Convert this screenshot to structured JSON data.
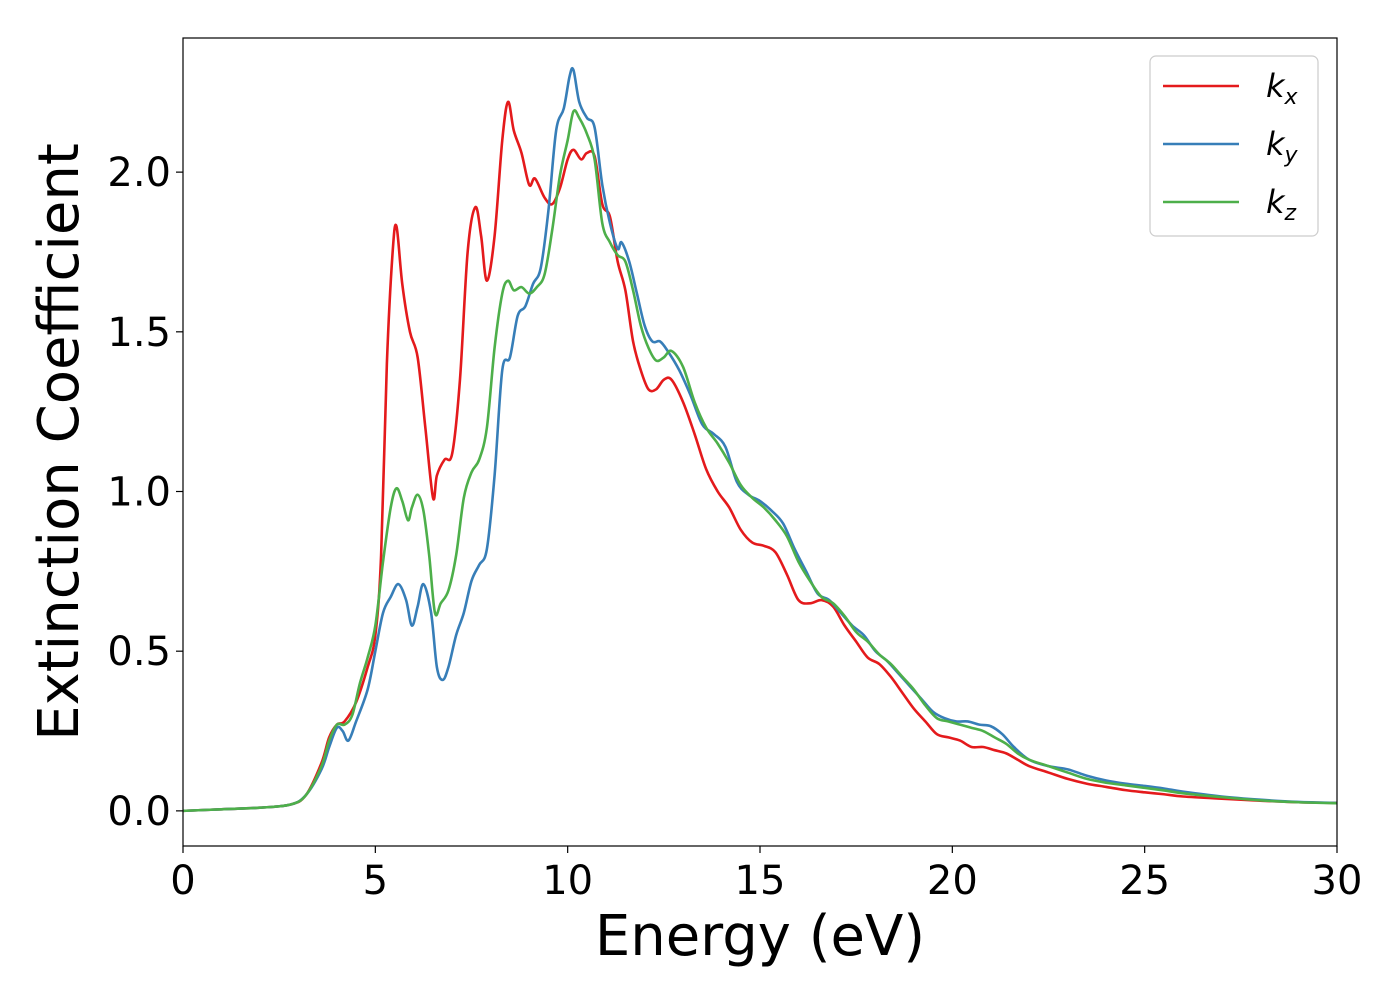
{
  "chart_data": {
    "type": "line",
    "title": "",
    "xlabel": "Energy (eV)",
    "ylabel": "Extinction Coefficient",
    "xlim": [
      0,
      30
    ],
    "ylim": [
      -0.11,
      2.42
    ],
    "xticks": [
      0,
      5,
      10,
      15,
      20,
      25,
      30
    ],
    "xtick_labels": [
      "0",
      "5",
      "10",
      "15",
      "20",
      "25",
      "30"
    ],
    "yticks": [
      0.0,
      0.5,
      1.0,
      1.5,
      2.0
    ],
    "ytick_labels": [
      "0.0",
      "0.5",
      "1.0",
      "1.5",
      "2.0"
    ],
    "grid": false,
    "legend_position": "top-right",
    "series": [
      {
        "name": "k",
        "subscript": "x",
        "color": "#e41a1c",
        "points": [
          [
            0,
            0
          ],
          [
            1,
            0.005
          ],
          [
            2,
            0.01
          ],
          [
            2.8,
            0.02
          ],
          [
            3.2,
            0.05
          ],
          [
            3.6,
            0.15
          ],
          [
            3.8,
            0.23
          ],
          [
            4.0,
            0.27
          ],
          [
            4.2,
            0.28
          ],
          [
            4.5,
            0.34
          ],
          [
            4.8,
            0.45
          ],
          [
            5.0,
            0.55
          ],
          [
            5.15,
            0.8
          ],
          [
            5.3,
            1.4
          ],
          [
            5.45,
            1.75
          ],
          [
            5.55,
            1.83
          ],
          [
            5.7,
            1.65
          ],
          [
            5.9,
            1.5
          ],
          [
            6.1,
            1.42
          ],
          [
            6.3,
            1.2
          ],
          [
            6.5,
            0.98
          ],
          [
            6.6,
            1.05
          ],
          [
            6.8,
            1.1
          ],
          [
            7.0,
            1.12
          ],
          [
            7.2,
            1.35
          ],
          [
            7.4,
            1.75
          ],
          [
            7.6,
            1.89
          ],
          [
            7.75,
            1.8
          ],
          [
            7.9,
            1.66
          ],
          [
            8.1,
            1.8
          ],
          [
            8.3,
            2.1
          ],
          [
            8.45,
            2.22
          ],
          [
            8.6,
            2.13
          ],
          [
            8.8,
            2.06
          ],
          [
            9.0,
            1.96
          ],
          [
            9.15,
            1.98
          ],
          [
            9.4,
            1.92
          ],
          [
            9.6,
            1.9
          ],
          [
            9.8,
            1.95
          ],
          [
            10.0,
            2.04
          ],
          [
            10.15,
            2.07
          ],
          [
            10.35,
            2.04
          ],
          [
            10.5,
            2.06
          ],
          [
            10.7,
            2.05
          ],
          [
            10.9,
            1.9
          ],
          [
            11.1,
            1.86
          ],
          [
            11.3,
            1.72
          ],
          [
            11.5,
            1.63
          ],
          [
            11.7,
            1.47
          ],
          [
            11.9,
            1.38
          ],
          [
            12.1,
            1.32
          ],
          [
            12.3,
            1.32
          ],
          [
            12.5,
            1.35
          ],
          [
            12.7,
            1.35
          ],
          [
            13.0,
            1.28
          ],
          [
            13.3,
            1.18
          ],
          [
            13.6,
            1.07
          ],
          [
            13.9,
            1.0
          ],
          [
            14.2,
            0.95
          ],
          [
            14.5,
            0.88
          ],
          [
            14.8,
            0.84
          ],
          [
            15.1,
            0.83
          ],
          [
            15.4,
            0.81
          ],
          [
            15.7,
            0.74
          ],
          [
            16.0,
            0.66
          ],
          [
            16.3,
            0.65
          ],
          [
            16.6,
            0.66
          ],
          [
            16.9,
            0.64
          ],
          [
            17.2,
            0.58
          ],
          [
            17.5,
            0.53
          ],
          [
            17.8,
            0.48
          ],
          [
            18.1,
            0.46
          ],
          [
            18.4,
            0.42
          ],
          [
            18.7,
            0.37
          ],
          [
            19.0,
            0.32
          ],
          [
            19.3,
            0.28
          ],
          [
            19.6,
            0.24
          ],
          [
            19.9,
            0.23
          ],
          [
            20.2,
            0.22
          ],
          [
            20.5,
            0.2
          ],
          [
            20.8,
            0.2
          ],
          [
            21.1,
            0.19
          ],
          [
            21.4,
            0.18
          ],
          [
            21.7,
            0.16
          ],
          [
            22.0,
            0.14
          ],
          [
            22.5,
            0.12
          ],
          [
            23.0,
            0.1
          ],
          [
            23.5,
            0.085
          ],
          [
            24.0,
            0.075
          ],
          [
            24.5,
            0.065
          ],
          [
            25.0,
            0.058
          ],
          [
            25.5,
            0.052
          ],
          [
            26.0,
            0.045
          ],
          [
            27.0,
            0.038
          ],
          [
            28.0,
            0.032
          ],
          [
            29.0,
            0.027
          ],
          [
            30.0,
            0.025
          ]
        ]
      },
      {
        "name": "k",
        "subscript": "y",
        "color": "#377eb8",
        "points": [
          [
            0,
            0
          ],
          [
            1,
            0.005
          ],
          [
            2,
            0.01
          ],
          [
            2.8,
            0.02
          ],
          [
            3.2,
            0.05
          ],
          [
            3.6,
            0.13
          ],
          [
            3.8,
            0.2
          ],
          [
            4.0,
            0.26
          ],
          [
            4.15,
            0.25
          ],
          [
            4.3,
            0.22
          ],
          [
            4.5,
            0.28
          ],
          [
            4.8,
            0.38
          ],
          [
            5.0,
            0.5
          ],
          [
            5.2,
            0.62
          ],
          [
            5.4,
            0.67
          ],
          [
            5.6,
            0.71
          ],
          [
            5.8,
            0.66
          ],
          [
            5.95,
            0.58
          ],
          [
            6.1,
            0.64
          ],
          [
            6.25,
            0.71
          ],
          [
            6.45,
            0.62
          ],
          [
            6.6,
            0.45
          ],
          [
            6.75,
            0.41
          ],
          [
            6.9,
            0.45
          ],
          [
            7.1,
            0.55
          ],
          [
            7.3,
            0.62
          ],
          [
            7.5,
            0.72
          ],
          [
            7.7,
            0.77
          ],
          [
            7.9,
            0.82
          ],
          [
            8.1,
            1.05
          ],
          [
            8.3,
            1.38
          ],
          [
            8.5,
            1.42
          ],
          [
            8.7,
            1.55
          ],
          [
            8.9,
            1.58
          ],
          [
            9.1,
            1.65
          ],
          [
            9.3,
            1.7
          ],
          [
            9.5,
            1.88
          ],
          [
            9.7,
            2.13
          ],
          [
            9.9,
            2.2
          ],
          [
            10.05,
            2.3
          ],
          [
            10.15,
            2.32
          ],
          [
            10.3,
            2.22
          ],
          [
            10.5,
            2.17
          ],
          [
            10.7,
            2.14
          ],
          [
            10.9,
            1.96
          ],
          [
            11.1,
            1.84
          ],
          [
            11.3,
            1.76
          ],
          [
            11.4,
            1.78
          ],
          [
            11.6,
            1.72
          ],
          [
            11.8,
            1.62
          ],
          [
            12.0,
            1.52
          ],
          [
            12.2,
            1.47
          ],
          [
            12.4,
            1.47
          ],
          [
            12.6,
            1.44
          ],
          [
            12.9,
            1.38
          ],
          [
            13.2,
            1.3
          ],
          [
            13.5,
            1.21
          ],
          [
            13.8,
            1.18
          ],
          [
            14.1,
            1.14
          ],
          [
            14.4,
            1.03
          ],
          [
            14.7,
            0.99
          ],
          [
            15.0,
            0.97
          ],
          [
            15.3,
            0.94
          ],
          [
            15.6,
            0.9
          ],
          [
            15.9,
            0.82
          ],
          [
            16.2,
            0.75
          ],
          [
            16.5,
            0.68
          ],
          [
            16.8,
            0.66
          ],
          [
            17.1,
            0.62
          ],
          [
            17.4,
            0.58
          ],
          [
            17.7,
            0.55
          ],
          [
            18.0,
            0.5
          ],
          [
            18.3,
            0.47
          ],
          [
            18.6,
            0.43
          ],
          [
            18.9,
            0.39
          ],
          [
            19.2,
            0.35
          ],
          [
            19.5,
            0.31
          ],
          [
            19.8,
            0.29
          ],
          [
            20.1,
            0.28
          ],
          [
            20.4,
            0.28
          ],
          [
            20.7,
            0.27
          ],
          [
            21.0,
            0.265
          ],
          [
            21.3,
            0.24
          ],
          [
            21.6,
            0.2
          ],
          [
            22.0,
            0.16
          ],
          [
            22.5,
            0.14
          ],
          [
            23.0,
            0.13
          ],
          [
            23.5,
            0.11
          ],
          [
            24.0,
            0.095
          ],
          [
            24.5,
            0.085
          ],
          [
            25.0,
            0.078
          ],
          [
            25.5,
            0.07
          ],
          [
            26.0,
            0.06
          ],
          [
            27.0,
            0.045
          ],
          [
            28.0,
            0.035
          ],
          [
            29.0,
            0.028
          ],
          [
            30.0,
            0.025
          ]
        ]
      },
      {
        "name": "k",
        "subscript": "z",
        "color": "#4daf4a",
        "points": [
          [
            0,
            0
          ],
          [
            1,
            0.005
          ],
          [
            2,
            0.01
          ],
          [
            2.8,
            0.02
          ],
          [
            3.2,
            0.05
          ],
          [
            3.6,
            0.14
          ],
          [
            3.8,
            0.22
          ],
          [
            4.0,
            0.27
          ],
          [
            4.2,
            0.27
          ],
          [
            4.4,
            0.3
          ],
          [
            4.6,
            0.4
          ],
          [
            4.8,
            0.48
          ],
          [
            5.0,
            0.58
          ],
          [
            5.2,
            0.78
          ],
          [
            5.4,
            0.95
          ],
          [
            5.55,
            1.01
          ],
          [
            5.7,
            0.97
          ],
          [
            5.85,
            0.91
          ],
          [
            5.95,
            0.95
          ],
          [
            6.1,
            0.99
          ],
          [
            6.25,
            0.94
          ],
          [
            6.4,
            0.8
          ],
          [
            6.55,
            0.62
          ],
          [
            6.7,
            0.65
          ],
          [
            6.9,
            0.69
          ],
          [
            7.1,
            0.8
          ],
          [
            7.3,
            0.98
          ],
          [
            7.5,
            1.06
          ],
          [
            7.7,
            1.1
          ],
          [
            7.9,
            1.2
          ],
          [
            8.1,
            1.45
          ],
          [
            8.3,
            1.62
          ],
          [
            8.45,
            1.66
          ],
          [
            8.6,
            1.63
          ],
          [
            8.8,
            1.64
          ],
          [
            9.0,
            1.62
          ],
          [
            9.2,
            1.64
          ],
          [
            9.4,
            1.68
          ],
          [
            9.6,
            1.82
          ],
          [
            9.8,
            1.99
          ],
          [
            10.0,
            2.1
          ],
          [
            10.15,
            2.19
          ],
          [
            10.3,
            2.17
          ],
          [
            10.5,
            2.12
          ],
          [
            10.7,
            2.04
          ],
          [
            10.9,
            1.84
          ],
          [
            11.1,
            1.78
          ],
          [
            11.3,
            1.74
          ],
          [
            11.5,
            1.72
          ],
          [
            11.7,
            1.63
          ],
          [
            11.9,
            1.52
          ],
          [
            12.1,
            1.45
          ],
          [
            12.3,
            1.41
          ],
          [
            12.5,
            1.42
          ],
          [
            12.7,
            1.44
          ],
          [
            13.0,
            1.39
          ],
          [
            13.3,
            1.28
          ],
          [
            13.6,
            1.2
          ],
          [
            13.9,
            1.15
          ],
          [
            14.2,
            1.09
          ],
          [
            14.5,
            1.02
          ],
          [
            14.8,
            0.98
          ],
          [
            15.1,
            0.95
          ],
          [
            15.4,
            0.91
          ],
          [
            15.7,
            0.86
          ],
          [
            16.0,
            0.78
          ],
          [
            16.3,
            0.72
          ],
          [
            16.6,
            0.67
          ],
          [
            16.9,
            0.65
          ],
          [
            17.2,
            0.61
          ],
          [
            17.5,
            0.56
          ],
          [
            17.8,
            0.53
          ],
          [
            18.1,
            0.49
          ],
          [
            18.4,
            0.46
          ],
          [
            18.7,
            0.42
          ],
          [
            19.0,
            0.38
          ],
          [
            19.3,
            0.33
          ],
          [
            19.6,
            0.29
          ],
          [
            19.9,
            0.28
          ],
          [
            20.2,
            0.27
          ],
          [
            20.5,
            0.26
          ],
          [
            20.8,
            0.25
          ],
          [
            21.1,
            0.23
          ],
          [
            21.4,
            0.21
          ],
          [
            21.7,
            0.18
          ],
          [
            22.0,
            0.16
          ],
          [
            22.5,
            0.14
          ],
          [
            23.0,
            0.12
          ],
          [
            23.5,
            0.1
          ],
          [
            24.0,
            0.088
          ],
          [
            24.5,
            0.08
          ],
          [
            25.0,
            0.072
          ],
          [
            25.5,
            0.064
          ],
          [
            26.0,
            0.055
          ],
          [
            27.0,
            0.043
          ],
          [
            28.0,
            0.033
          ],
          [
            29.0,
            0.027
          ],
          [
            30.0,
            0.024
          ]
        ]
      }
    ]
  }
}
